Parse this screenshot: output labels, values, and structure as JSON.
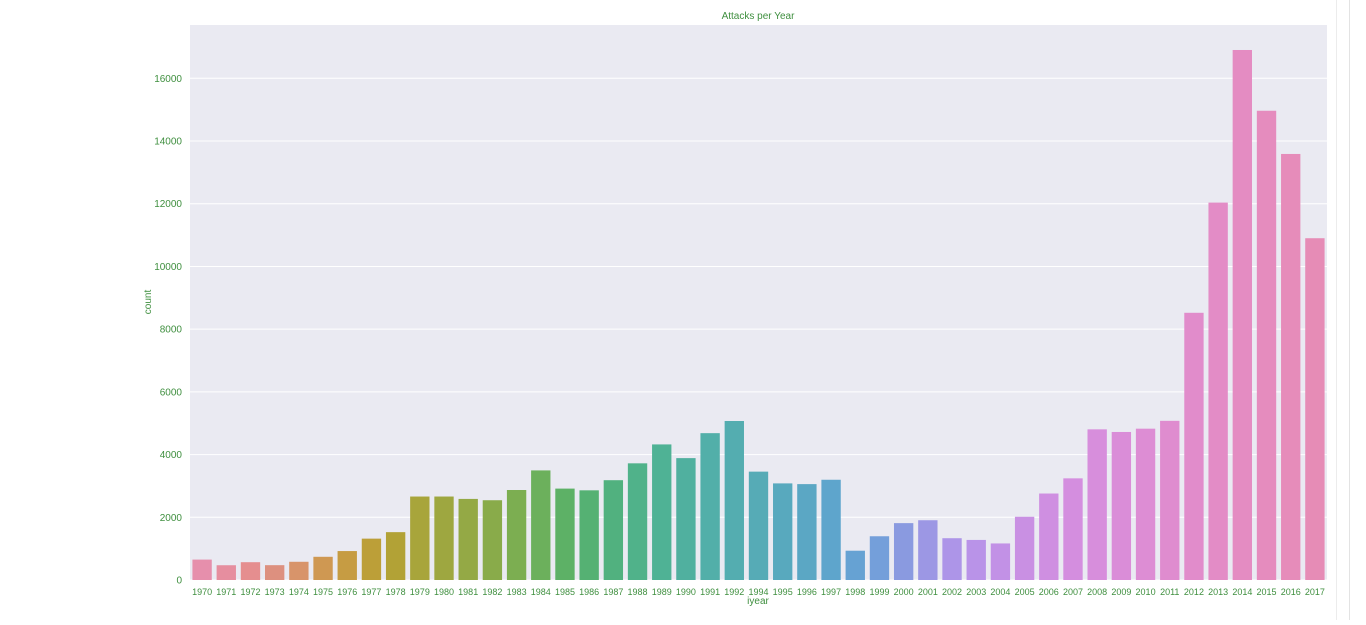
{
  "chart_data": {
    "type": "bar",
    "title": "Attacks per Year",
    "xlabel": "iyear",
    "ylabel": "count",
    "ylim": [
      0,
      17700
    ],
    "yticks": [
      0,
      2000,
      4000,
      6000,
      8000,
      10000,
      12000,
      14000,
      16000
    ],
    "grid": true,
    "categories": [
      "1970",
      "1971",
      "1972",
      "1973",
      "1974",
      "1975",
      "1976",
      "1977",
      "1978",
      "1979",
      "1980",
      "1981",
      "1982",
      "1983",
      "1984",
      "1985",
      "1986",
      "1987",
      "1988",
      "1989",
      "1990",
      "1991",
      "1992",
      "1994",
      "1995",
      "1996",
      "1997",
      "1998",
      "1999",
      "2000",
      "2001",
      "2002",
      "2003",
      "2004",
      "2005",
      "2006",
      "2007",
      "2008",
      "2009",
      "2010",
      "2011",
      "2012",
      "2013",
      "2014",
      "2015",
      "2016",
      "2017"
    ],
    "values": [
      651,
      471,
      568,
      473,
      581,
      740,
      923,
      1319,
      1526,
      2662,
      2662,
      2586,
      2544,
      2870,
      3495,
      2915,
      2860,
      3183,
      3721,
      4324,
      3887,
      4683,
      5071,
      3456,
      3081,
      3058,
      3197,
      934,
      1395,
      1814,
      1906,
      1333,
      1278,
      1166,
      2017,
      2758,
      3242,
      4805,
      4721,
      4826,
      5076,
      8522,
      12036,
      16903,
      14965,
      13587,
      10900
    ],
    "colors": [
      "#e68fac",
      "#e68e9f",
      "#e58e8f",
      "#dd907f",
      "#d8946a",
      "#cf9852",
      "#c69c43",
      "#bc9f38",
      "#b2a236",
      "#a8a53b",
      "#9ea740",
      "#94a945",
      "#89ab4a",
      "#7cae51",
      "#6cb05c",
      "#5db166",
      "#55b173",
      "#51b17f",
      "#50b28a",
      "#4fb295",
      "#50b09f",
      "#52afa9",
      "#54adb0",
      "#56abb6",
      "#58a9be",
      "#5ba7c4",
      "#5ea5cc",
      "#66a2d3",
      "#749fda",
      "#8a9ae0",
      "#9c97e4",
      "#ad95e8",
      "#b993e8",
      "#c291e6",
      "#c990e3",
      "#cf8fe1",
      "#d48edf",
      "#d78edc",
      "#da8dd8",
      "#dd8dd4",
      "#df8ccf",
      "#e18ccb",
      "#e38cc6",
      "#e48cc2",
      "#e58cbe",
      "#e68cba",
      "#e68cb6"
    ]
  }
}
